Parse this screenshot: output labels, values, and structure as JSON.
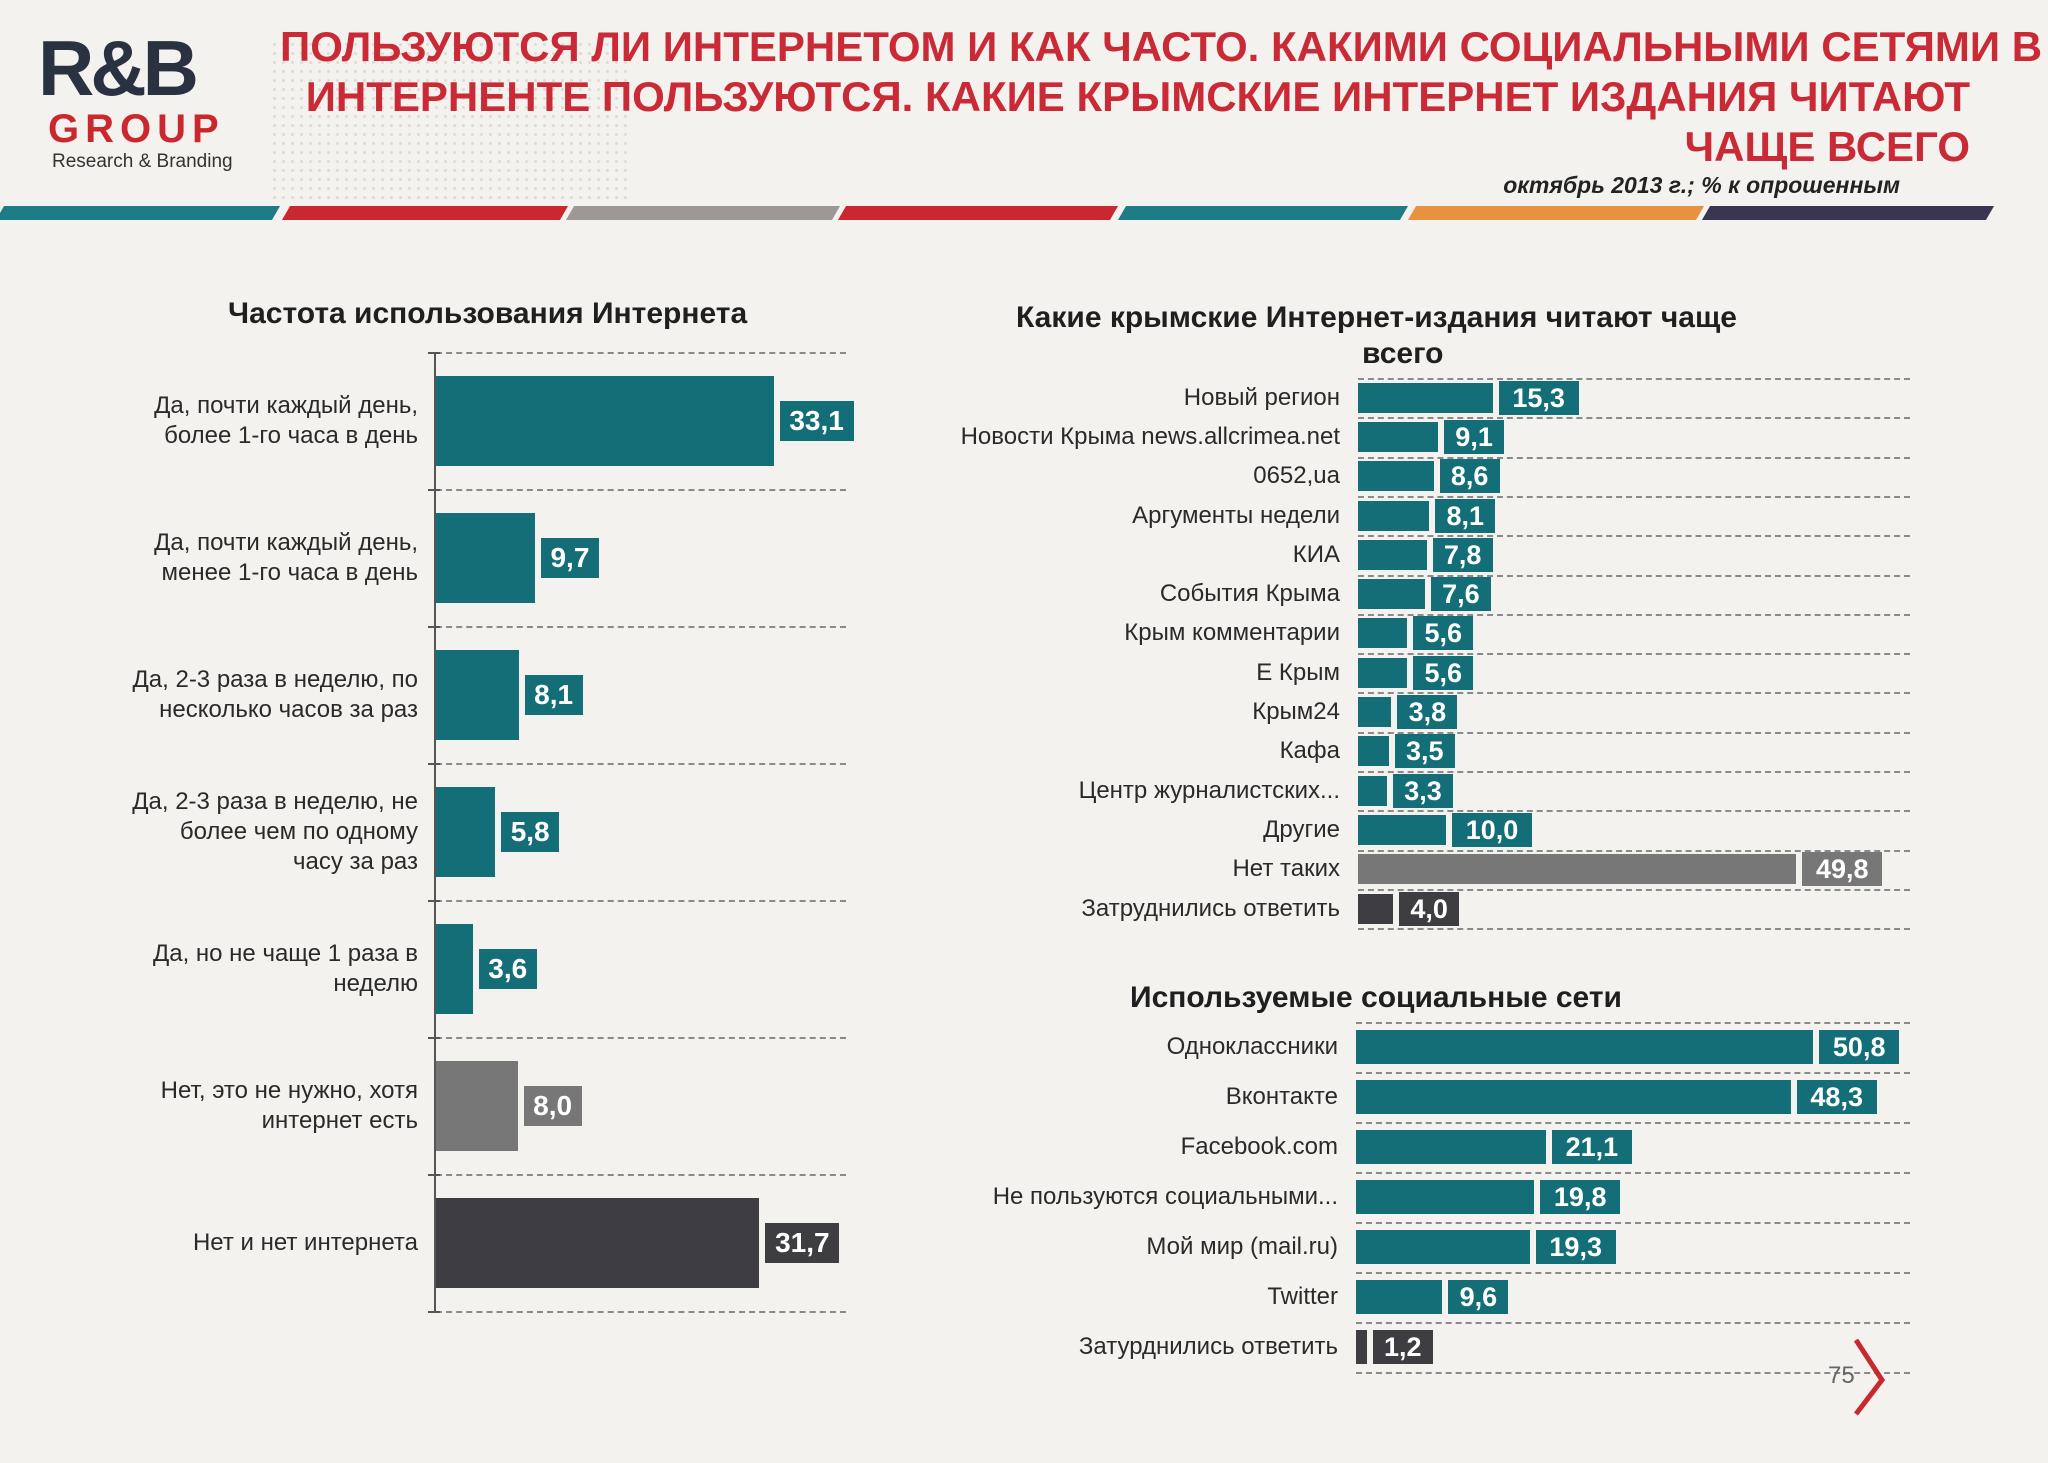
{
  "header": {
    "logo_main": "R&B",
    "logo_group": "GROUP",
    "logo_sub": "Research & Branding",
    "title_lines": [
      "ПОЛЬЗУЮТСЯ ЛИ ИНТЕРНЕТОМ И КАК ЧАСТО. КАКИМИ СОЦИАЛЬНЫМИ СЕТЯМИ В",
      "ИНТЕРНЕНТЕ ПОЛЬЗУЮТСЯ. КАКИЕ  КРЫМСКИЕ ИНТЕРНЕТ ИЗДАНИЯ ЧИТАЮТ",
      "ЧАЩЕ ВСЕГО"
    ],
    "subtitle": "октябрь 2013 г.; % к опрошенным",
    "stripe_colors": [
      "#1d7c86",
      "#c8282e",
      "#9d9895",
      "#c8282e",
      "#1d7c86",
      "#e7923f",
      "#3a3550"
    ]
  },
  "colors": {
    "teal": "#136e78",
    "grey": "#777777",
    "dark": "#3e3e42"
  },
  "page_number": "75",
  "chart_data": [
    {
      "type": "bar",
      "orientation": "horizontal",
      "title": "Частота использования Интернета",
      "unit": "% к опрошенным",
      "categories": [
        "Да, почти каждый день,\nболее 1-го часа в день",
        "Да, почти каждый день,\nменее 1-го часа в день",
        "Да, 2-3 раза в неделю, по\nнесколько часов за раз",
        "Да, 2-3 раза в неделю, не\nболее чем по одному\nчасу за раз",
        "Да, но не чаще 1 раза в\nнеделю",
        "Нет, это не нужно, хотя\nинтернет есть",
        "Нет и нет интернета"
      ],
      "values": [
        33.1,
        9.7,
        8.1,
        5.8,
        3.6,
        8.0,
        31.7
      ],
      "labels": [
        "33,1",
        "9,7",
        "8,1",
        "5,8",
        "3,6",
        "8,0",
        "31,7"
      ],
      "colors": [
        "teal",
        "teal",
        "teal",
        "teal",
        "teal",
        "grey",
        "dark"
      ]
    },
    {
      "type": "bar",
      "orientation": "horizontal",
      "title": "Какие крымские Интернет-издания читают чаще всего",
      "title_lines": [
        "Какие крымские Интернет-издания читают чаще",
        "всего"
      ],
      "unit": "% к опрошенным",
      "categories": [
        "Новый регион",
        "Новости Крыма news.allcrimea.net",
        "0652,ua",
        "Аргументы недели",
        "КИА",
        "События Крыма",
        "Крым комментарии",
        "Е Крым",
        "Крым24",
        "Кафа",
        "Центр журналистских...",
        "Другие",
        "Нет таких",
        "Затруднились ответить"
      ],
      "values": [
        15.3,
        9.1,
        8.6,
        8.1,
        7.8,
        7.6,
        5.6,
        5.6,
        3.8,
        3.5,
        3.3,
        10.0,
        49.8,
        4.0
      ],
      "labels": [
        "15,3",
        "9,1",
        "8,6",
        "8,1",
        "7,8",
        "7,6",
        "5,6",
        "5,6",
        "3,8",
        "3,5",
        "3,3",
        "10,0",
        "49,8",
        "4,0"
      ],
      "colors": [
        "teal",
        "teal",
        "teal",
        "teal",
        "teal",
        "teal",
        "teal",
        "teal",
        "teal",
        "teal",
        "teal",
        "teal",
        "grey",
        "dark"
      ]
    },
    {
      "type": "bar",
      "orientation": "horizontal",
      "title": "Используемые социальные сети",
      "unit": "% к опрошенным",
      "categories": [
        "Одноклассники",
        "Вконтакте",
        "Facebook.com",
        "Не пользуются социальными...",
        "Мой мир (mail.ru)",
        "Twitter",
        "Затурднились ответить"
      ],
      "values": [
        50.8,
        48.3,
        21.1,
        19.8,
        19.3,
        9.6,
        1.2
      ],
      "labels": [
        "50,8",
        "48,3",
        "21,1",
        "19,8",
        "19,3",
        "9,6",
        "1,2"
      ],
      "colors": [
        "teal",
        "teal",
        "teal",
        "teal",
        "teal",
        "teal",
        "dark"
      ]
    }
  ]
}
